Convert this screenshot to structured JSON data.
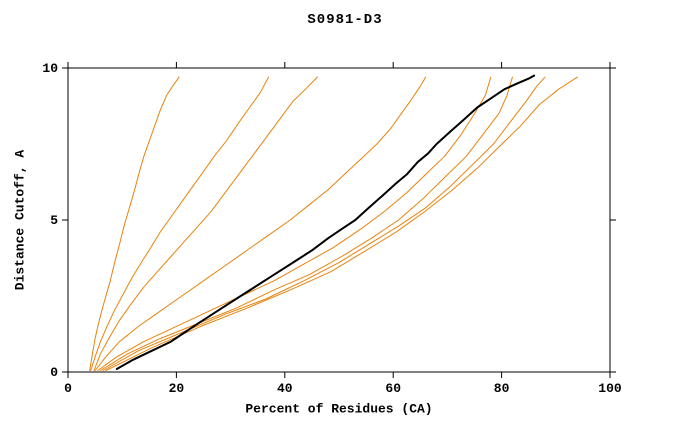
{
  "chart_data": {
    "type": "line",
    "title": "S0981-D3",
    "xlabel": "Percent of Residues (CA)",
    "ylabel": "Distance Cutoff, A",
    "xlim": [
      0,
      100
    ],
    "ylim": [
      0,
      10
    ],
    "xticks": [
      0,
      20,
      40,
      60,
      80,
      100
    ],
    "yticks": [
      0,
      5,
      10
    ],
    "grid": false,
    "legend": false,
    "colors": {
      "model_lines": "#e8820c",
      "highlight_line": "#000000",
      "axes": "#000000"
    },
    "series": [
      {
        "color": "#e8820c",
        "width": 1,
        "points": [
          [
            4,
            0.05
          ],
          [
            4.5,
            0.6
          ],
          [
            5,
            1.1
          ],
          [
            5.5,
            1.5
          ],
          [
            6.2,
            2.0
          ],
          [
            7,
            2.5
          ],
          [
            7.8,
            3.0
          ],
          [
            8.6,
            3.6
          ],
          [
            9.5,
            4.2
          ],
          [
            10.5,
            4.9
          ],
          [
            11.5,
            5.5
          ],
          [
            12.3,
            6.0
          ],
          [
            13.2,
            6.6
          ],
          [
            14,
            7.1
          ],
          [
            15,
            7.6
          ],
          [
            16,
            8.1
          ],
          [
            17,
            8.6
          ],
          [
            18.2,
            9.1
          ],
          [
            19.3,
            9.4
          ],
          [
            20.5,
            9.7
          ]
        ]
      },
      {
        "color": "#e8820c",
        "width": 1,
        "points": [
          [
            4.2,
            0.05
          ],
          [
            5,
            0.5
          ],
          [
            6,
            1.0
          ],
          [
            7.2,
            1.5
          ],
          [
            8.5,
            2.0
          ],
          [
            10,
            2.5
          ],
          [
            11.8,
            3.1
          ],
          [
            13.5,
            3.6
          ],
          [
            15.3,
            4.1
          ],
          [
            17,
            4.6
          ],
          [
            19,
            5.1
          ],
          [
            21,
            5.6
          ],
          [
            23,
            6.1
          ],
          [
            25,
            6.6
          ],
          [
            27,
            7.1
          ],
          [
            29.2,
            7.6
          ],
          [
            31.5,
            8.2
          ],
          [
            33.5,
            8.7
          ],
          [
            35.5,
            9.2
          ],
          [
            37,
            9.7
          ]
        ]
      },
      {
        "color": "#e8820c",
        "width": 1,
        "points": [
          [
            4.8,
            0.05
          ],
          [
            6,
            0.6
          ],
          [
            7.5,
            1.1
          ],
          [
            9.5,
            1.7
          ],
          [
            11.5,
            2.2
          ],
          [
            14,
            2.8
          ],
          [
            16.5,
            3.3
          ],
          [
            19,
            3.8
          ],
          [
            21.5,
            4.3
          ],
          [
            24,
            4.8
          ],
          [
            26.5,
            5.3
          ],
          [
            29,
            5.9
          ],
          [
            31.5,
            6.5
          ],
          [
            34,
            7.1
          ],
          [
            36.5,
            7.7
          ],
          [
            39,
            8.3
          ],
          [
            41.5,
            8.9
          ],
          [
            43.8,
            9.3
          ],
          [
            46,
            9.7
          ]
        ]
      },
      {
        "color": "#e8820c",
        "width": 1,
        "points": [
          [
            5,
            0.05
          ],
          [
            7,
            0.5
          ],
          [
            9.5,
            1.0
          ],
          [
            13,
            1.5
          ],
          [
            17,
            2.0
          ],
          [
            21,
            2.5
          ],
          [
            25,
            3.0
          ],
          [
            29,
            3.5
          ],
          [
            33,
            4.0
          ],
          [
            37,
            4.5
          ],
          [
            41,
            5.0
          ],
          [
            44.5,
            5.5
          ],
          [
            48,
            6.0
          ],
          [
            51,
            6.5
          ],
          [
            54,
            7.0
          ],
          [
            57,
            7.5
          ],
          [
            59.5,
            8.0
          ],
          [
            61.5,
            8.5
          ],
          [
            63.5,
            9.0
          ],
          [
            65,
            9.4
          ],
          [
            66,
            9.7
          ]
        ]
      },
      {
        "color": "#e8820c",
        "width": 1,
        "points": [
          [
            5.5,
            0.05
          ],
          [
            9,
            0.5
          ],
          [
            14,
            1.0
          ],
          [
            20,
            1.5
          ],
          [
            26,
            2.0
          ],
          [
            32,
            2.5
          ],
          [
            38,
            3.0
          ],
          [
            44,
            3.6
          ],
          [
            49,
            4.1
          ],
          [
            54,
            4.7
          ],
          [
            58.5,
            5.3
          ],
          [
            62.5,
            5.9
          ],
          [
            66,
            6.5
          ],
          [
            69.5,
            7.1
          ],
          [
            72.5,
            7.8
          ],
          [
            75,
            8.5
          ],
          [
            77,
            9.1
          ],
          [
            78,
            9.7
          ]
        ]
      },
      {
        "color": "#e8820c",
        "width": 1,
        "points": [
          [
            6,
            0.05
          ],
          [
            11,
            0.6
          ],
          [
            17,
            1.1
          ],
          [
            24,
            1.6
          ],
          [
            31,
            2.1
          ],
          [
            38,
            2.7
          ],
          [
            44.5,
            3.2
          ],
          [
            50.5,
            3.8
          ],
          [
            56,
            4.4
          ],
          [
            61,
            5.0
          ],
          [
            65.5,
            5.7
          ],
          [
            69.5,
            6.4
          ],
          [
            73.5,
            7.1
          ],
          [
            76.5,
            7.8
          ],
          [
            79.5,
            8.5
          ],
          [
            81,
            9.1
          ],
          [
            82,
            9.7
          ]
        ]
      },
      {
        "color": "#e8820c",
        "width": 1,
        "points": [
          [
            6.5,
            0.05
          ],
          [
            13,
            0.7
          ],
          [
            21,
            1.3
          ],
          [
            29,
            1.9
          ],
          [
            36.5,
            2.4
          ],
          [
            43.5,
            3.0
          ],
          [
            50,
            3.6
          ],
          [
            55.5,
            4.2
          ],
          [
            61,
            4.8
          ],
          [
            66,
            5.4
          ],
          [
            70.5,
            6.1
          ],
          [
            74.5,
            6.8
          ],
          [
            78.5,
            7.5
          ],
          [
            81.5,
            8.2
          ],
          [
            84.5,
            8.9
          ],
          [
            86.5,
            9.4
          ],
          [
            88,
            9.7
          ]
        ]
      },
      {
        "color": "#e8820c",
        "width": 1,
        "points": [
          [
            7,
            0.05
          ],
          [
            15.5,
            0.8
          ],
          [
            24.5,
            1.5
          ],
          [
            33,
            2.1
          ],
          [
            41,
            2.7
          ],
          [
            48.5,
            3.3
          ],
          [
            55,
            4.0
          ],
          [
            60.5,
            4.6
          ],
          [
            66,
            5.3
          ],
          [
            71,
            6.0
          ],
          [
            75.5,
            6.7
          ],
          [
            79.5,
            7.4
          ],
          [
            83.5,
            8.1
          ],
          [
            87,
            8.8
          ],
          [
            90.5,
            9.3
          ],
          [
            94,
            9.7
          ]
        ]
      },
      {
        "color": "#000000",
        "width": 2,
        "points": [
          [
            9,
            0.1
          ],
          [
            12,
            0.4
          ],
          [
            15.5,
            0.7
          ],
          [
            19,
            1.0
          ],
          [
            21.5,
            1.3
          ],
          [
            24,
            1.6
          ],
          [
            27.5,
            2.0
          ],
          [
            31,
            2.4
          ],
          [
            34.5,
            2.8
          ],
          [
            38,
            3.2
          ],
          [
            41.5,
            3.6
          ],
          [
            45,
            4.0
          ],
          [
            48,
            4.4
          ],
          [
            50.5,
            4.7
          ],
          [
            53,
            5.0
          ],
          [
            55.5,
            5.4
          ],
          [
            58,
            5.8
          ],
          [
            60.5,
            6.2
          ],
          [
            62.5,
            6.5
          ],
          [
            64.5,
            6.9
          ],
          [
            66.5,
            7.2
          ],
          [
            68,
            7.5
          ],
          [
            70.5,
            7.9
          ],
          [
            73,
            8.3
          ],
          [
            75.5,
            8.7
          ],
          [
            78,
            9.0
          ],
          [
            80.5,
            9.3
          ],
          [
            83,
            9.5
          ],
          [
            85,
            9.65
          ],
          [
            86,
            9.75
          ]
        ]
      }
    ]
  }
}
